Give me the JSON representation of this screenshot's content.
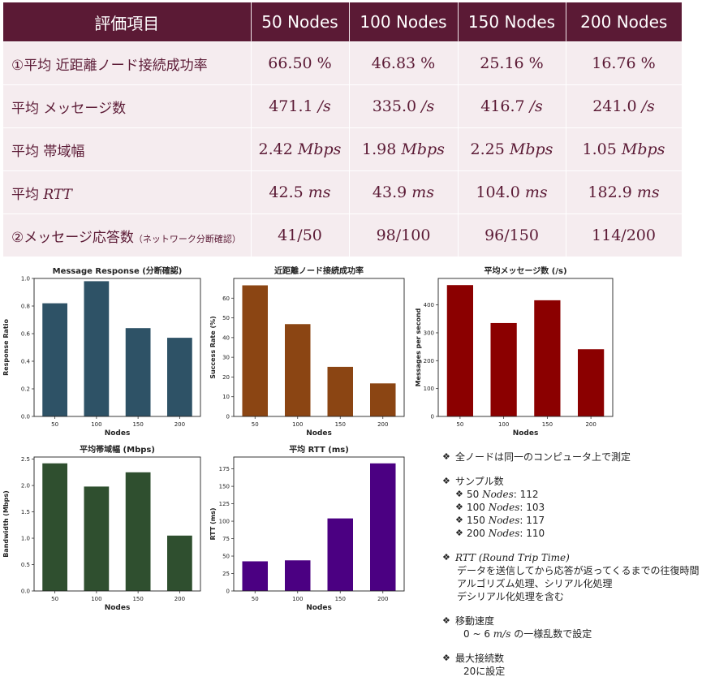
{
  "table": {
    "header": [
      "評価項目",
      "50 Nodes",
      "100 Nodes",
      "150 Nodes",
      "200 Nodes"
    ],
    "rows": [
      {
        "label": "①平均 近距離ノード接続成功率",
        "label_note": "",
        "label_italic": "",
        "values": [
          "66.50 %",
          "46.83 %",
          "25.16 %",
          "16.76 %"
        ],
        "unit": ""
      },
      {
        "label": "平均 メッセージ数",
        "label_note": "",
        "label_italic": "",
        "values": [
          "471.1 ",
          "335.0 ",
          "416.7 ",
          "241.0 "
        ],
        "unit": "/s"
      },
      {
        "label": "平均 帯域幅",
        "label_note": "",
        "label_italic": "",
        "values": [
          "2.42 ",
          "1.98 ",
          "2.25 ",
          "1.05 "
        ],
        "unit": "Mbps"
      },
      {
        "label": "平均 ",
        "label_note": "",
        "label_italic": "RTT",
        "values": [
          "42.5 ",
          "43.9 ",
          "104.0 ",
          "182.9 "
        ],
        "unit": "ms"
      },
      {
        "label": "②メッセージ応答数",
        "label_note": "（ネットワーク分断確認）",
        "label_italic": "",
        "values": [
          "41/50",
          "98/100",
          "96/150",
          "114/200"
        ],
        "unit": ""
      }
    ]
  },
  "chart_data": [
    {
      "type": "bar",
      "title": "Message Response (分断確認)",
      "xlabel": "Nodes",
      "ylabel": "Response Ratio",
      "categories": [
        "50",
        "100",
        "150",
        "200"
      ],
      "values": [
        0.82,
        0.98,
        0.64,
        0.57
      ],
      "ylim": [
        0,
        1.0
      ],
      "yticks": [
        "0.0",
        "0.2",
        "0.4",
        "0.6",
        "0.8",
        "1.0"
      ],
      "color": "#2e5266"
    },
    {
      "type": "bar",
      "title": "近距離ノード接続成功率",
      "xlabel": "Nodes",
      "ylabel": "Success Rate (%)",
      "categories": [
        "50",
        "100",
        "150",
        "200"
      ],
      "values": [
        66.5,
        46.83,
        25.16,
        16.76
      ],
      "ylim": [
        0,
        70
      ],
      "yticks": [
        "0",
        "10",
        "20",
        "30",
        "40",
        "50",
        "60"
      ],
      "color": "#8b4513"
    },
    {
      "type": "bar",
      "title": "平均メッセージ数 (/s)",
      "xlabel": "Nodes",
      "ylabel": "Messages per second",
      "categories": [
        "50",
        "100",
        "150",
        "200"
      ],
      "values": [
        471.1,
        335.0,
        416.7,
        241.0
      ],
      "ylim": [
        0,
        495
      ],
      "yticks": [
        "0",
        "100",
        "200",
        "300",
        "400"
      ],
      "color": "#8b0000"
    },
    {
      "type": "bar",
      "title": "平均帯域幅 (Mbps)",
      "xlabel": "Nodes",
      "ylabel": "Bandwidth (Mbps)",
      "categories": [
        "50",
        "100",
        "150",
        "200"
      ],
      "values": [
        2.42,
        1.98,
        2.25,
        1.05
      ],
      "ylim": [
        0,
        2.54
      ],
      "yticks": [
        "0.0",
        "0.5",
        "1.0",
        "1.5",
        "2.0",
        "2.5"
      ],
      "color": "#2f4f2f"
    },
    {
      "type": "bar",
      "title": "平均 RTT (ms)",
      "xlabel": "Nodes",
      "ylabel": "RTT (ms)",
      "categories": [
        "50",
        "100",
        "150",
        "200"
      ],
      "values": [
        42.5,
        43.9,
        104.0,
        182.9
      ],
      "ylim": [
        0,
        192
      ],
      "yticks": [
        "0",
        "25",
        "50",
        "75",
        "100",
        "125",
        "150",
        "175"
      ],
      "color": "#4b0082"
    }
  ],
  "notes": {
    "measurement": "全ノードは同一のコンピュータ上で測定",
    "sample_title": "サンプル数",
    "samples": [
      {
        "n": "50",
        "unit": "Nodes",
        "count": ": 112"
      },
      {
        "n": "100",
        "unit": "Nodes",
        "count": ": 103"
      },
      {
        "n": "150",
        "unit": "Nodes",
        "count": ": 117"
      },
      {
        "n": "200",
        "unit": "Nodes",
        "count": ": 110"
      }
    ],
    "rtt_title": "RTT (Round Trip Time)",
    "rtt_lines": [
      "データを送信してから応答が返ってくるまでの往復時間",
      "アルゴリズム処理、シリアル化処理",
      "デシリアル化処理を含む"
    ],
    "speed_title": "移動速度",
    "speed_prefix": "0 ~ 6 ",
    "speed_unit": "m/s",
    "speed_suffix": " の一様乱数で設定",
    "maxconn_title": "最大接続数",
    "maxconn_value": "20に設定"
  }
}
